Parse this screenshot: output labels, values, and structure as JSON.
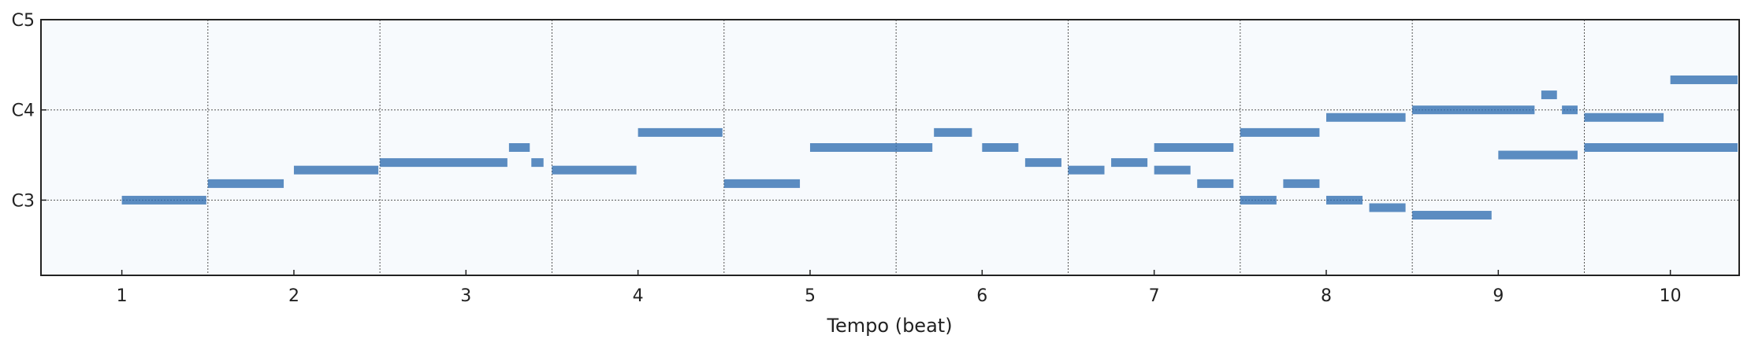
{
  "chart_data": {
    "type": "piano-roll",
    "title": "",
    "xlabel": "Tempo (beat)",
    "ylabel": "",
    "x_ticks": [
      {
        "label": "1",
        "value": 1
      },
      {
        "label": "2",
        "value": 2
      },
      {
        "label": "3",
        "value": 3
      },
      {
        "label": "4",
        "value": 4
      },
      {
        "label": "5",
        "value": 5
      },
      {
        "label": "6",
        "value": 6
      },
      {
        "label": "7",
        "value": 7
      },
      {
        "label": "8",
        "value": 8
      },
      {
        "label": "9",
        "value": 9
      },
      {
        "label": "10",
        "value": 10
      }
    ],
    "x_gridlines": [
      1.5,
      2.5,
      3.5,
      4.5,
      5.5,
      6.5,
      7.5,
      8.5,
      9.5
    ],
    "y_ticks": [
      {
        "label": "C3",
        "value": 48
      },
      {
        "label": "C4",
        "value": 60
      },
      {
        "label": "C5",
        "value": 72
      }
    ],
    "y_gridlines": [
      48,
      60
    ],
    "xlim": [
      0.53,
      10.4
    ],
    "ylim": [
      38,
      72
    ],
    "grid": true,
    "note_color": "#2f6db0",
    "background_color": "#f7fafd",
    "notes": [
      {
        "start": 1.0,
        "end": 1.5,
        "pitch": 48
      },
      {
        "start": 1.5,
        "end": 1.95,
        "pitch": 50.2
      },
      {
        "start": 2.0,
        "end": 2.5,
        "pitch": 52
      },
      {
        "start": 2.5,
        "end": 3.25,
        "pitch": 53
      },
      {
        "start": 3.25,
        "end": 3.38,
        "pitch": 55
      },
      {
        "start": 3.38,
        "end": 3.46,
        "pitch": 53
      },
      {
        "start": 3.5,
        "end": 4.0,
        "pitch": 52
      },
      {
        "start": 4.0,
        "end": 4.5,
        "pitch": 57
      },
      {
        "start": 4.5,
        "end": 4.95,
        "pitch": 50.2
      },
      {
        "start": 5.0,
        "end": 5.72,
        "pitch": 55
      },
      {
        "start": 5.72,
        "end": 5.95,
        "pitch": 57
      },
      {
        "start": 6.0,
        "end": 6.22,
        "pitch": 55
      },
      {
        "start": 6.25,
        "end": 6.47,
        "pitch": 53
      },
      {
        "start": 6.5,
        "end": 6.72,
        "pitch": 52
      },
      {
        "start": 6.75,
        "end": 6.97,
        "pitch": 53
      },
      {
        "start": 7.0,
        "end": 7.22,
        "pitch": 52
      },
      {
        "start": 7.0,
        "end": 7.47,
        "pitch": 55
      },
      {
        "start": 7.25,
        "end": 7.47,
        "pitch": 50.2
      },
      {
        "start": 7.5,
        "end": 7.72,
        "pitch": 48
      },
      {
        "start": 7.5,
        "end": 7.97,
        "pitch": 57
      },
      {
        "start": 7.75,
        "end": 7.97,
        "pitch": 50.2
      },
      {
        "start": 8.0,
        "end": 8.22,
        "pitch": 48
      },
      {
        "start": 8.0,
        "end": 8.47,
        "pitch": 59
      },
      {
        "start": 8.25,
        "end": 8.47,
        "pitch": 47
      },
      {
        "start": 8.5,
        "end": 8.97,
        "pitch": 46
      },
      {
        "start": 8.5,
        "end": 9.22,
        "pitch": 60
      },
      {
        "start": 9.0,
        "end": 9.47,
        "pitch": 54
      },
      {
        "start": 9.25,
        "end": 9.35,
        "pitch": 62
      },
      {
        "start": 9.37,
        "end": 9.47,
        "pitch": 60
      },
      {
        "start": 9.5,
        "end": 9.97,
        "pitch": 59
      },
      {
        "start": 9.5,
        "end": 10.4,
        "pitch": 55
      },
      {
        "start": 10.0,
        "end": 10.4,
        "pitch": 64
      }
    ]
  }
}
